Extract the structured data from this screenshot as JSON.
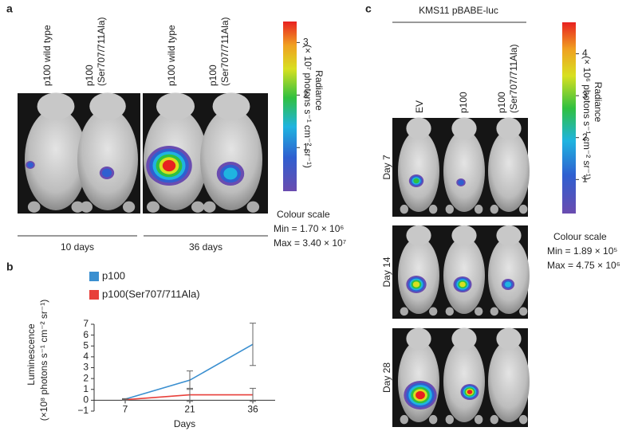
{
  "panel_a": {
    "label": "a",
    "columns": [
      [
        "p100 wild type"
      ],
      [
        "p100",
        "(Ser707/711Ala)"
      ],
      [
        "p100 wild type"
      ],
      [
        "p100",
        "(Ser707/711Ala)"
      ]
    ],
    "time_labels": [
      "10 days",
      "36 days"
    ],
    "colorbar": {
      "label": "Radiance",
      "unit": "(× 10⁷ photons s⁻¹ cm⁻² sr⁻¹)",
      "lim": [
        0.17,
        3.4
      ],
      "ticks": [
        1,
        2,
        3
      ]
    },
    "colour_scale": {
      "title": "Colour scale",
      "min": "Min = 1.70 × 10⁶",
      "max": "Max = 3.40 × 10⁷"
    }
  },
  "chart_data": {
    "type": "line",
    "panel_label": "b",
    "categories": [
      "7",
      "21",
      "36"
    ],
    "xlabel": "Days",
    "ylabel": [
      "Luminescence",
      "(×10⁸ photons s⁻¹ cm⁻² sr⁻¹)"
    ],
    "ylim": [
      -1,
      7
    ],
    "yticks": [
      {
        "value": -1,
        "label": "−1"
      },
      0,
      1,
      2,
      3,
      4,
      5,
      6,
      7
    ],
    "legend": "upper left",
    "series": [
      {
        "name": "p100",
        "color": "#3a8fd0",
        "values": [
          0.1,
          1.85,
          5.15
        ],
        "errors": [
          0.05,
          0.85,
          1.95
        ]
      },
      {
        "name": "p100(Ser707/711Ala)",
        "color": "#e8403a",
        "values": [
          0.05,
          0.5,
          0.5
        ],
        "errors": [
          0.05,
          0.6,
          0.6
        ]
      }
    ]
  },
  "panel_c": {
    "label": "c",
    "title": "KMS11 pBABE-luc",
    "columns": [
      [
        "EV"
      ],
      [
        "p100"
      ],
      [
        "p100",
        "(Ser707/711Ala)"
      ]
    ],
    "rows": [
      "Day 7",
      "Day 14",
      "Day 28"
    ],
    "colorbar": {
      "label": "Radiance",
      "unit": "(× 10⁶ photons s⁻¹ cm⁻² sr⁻¹)",
      "lim": [
        0.189,
        4.75
      ],
      "ticks": [
        1,
        2,
        3,
        4
      ]
    },
    "colour_scale": {
      "title": "Colour scale",
      "min": "Min = 1.89 × 10⁵",
      "max": "Max = 4.75 × 10⁶"
    }
  }
}
